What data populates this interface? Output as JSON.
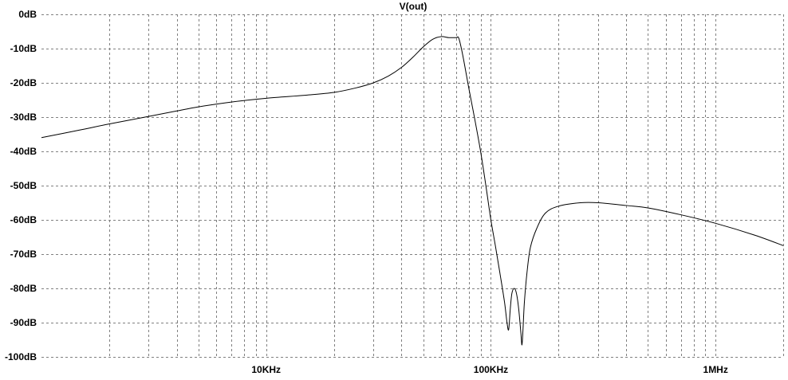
{
  "chart_data": {
    "type": "line",
    "title": "V(out)",
    "xlabel": "",
    "ylabel": "",
    "x_scale": "log",
    "xlim": [
      1000,
      2000000
    ],
    "ylim": [
      -100,
      0
    ],
    "grid": true,
    "y_ticks": [
      {
        "value": 0,
        "label": "0dB"
      },
      {
        "value": -10,
        "label": "-10dB"
      },
      {
        "value": -20,
        "label": "-20dB"
      },
      {
        "value": -30,
        "label": "-30dB"
      },
      {
        "value": -40,
        "label": "-40dB"
      },
      {
        "value": -50,
        "label": "-50dB"
      },
      {
        "value": -60,
        "label": "-60dB"
      },
      {
        "value": -70,
        "label": "-70dB"
      },
      {
        "value": -80,
        "label": "-80dB"
      },
      {
        "value": -90,
        "label": "-90dB"
      },
      {
        "value": -100,
        "label": "-100dB"
      }
    ],
    "x_ticks": [
      {
        "value": 10000,
        "label": "10KHz"
      },
      {
        "value": 100000,
        "label": "100KHz"
      },
      {
        "value": 1000000,
        "label": "1MHz"
      }
    ],
    "series": [
      {
        "x": [
          1000,
          1500,
          2000,
          3000,
          4000,
          5000,
          7000,
          10000,
          15000,
          20000,
          25000,
          30000,
          35000,
          40000,
          45000,
          50000,
          55000,
          60000,
          65000,
          70000,
          72000,
          75000,
          80000,
          85000,
          90000,
          95000,
          100000,
          105000,
          110000,
          115000,
          118000,
          120000,
          122000,
          124000,
          127000,
          130000,
          133000,
          136000,
          137500,
          139000,
          141000,
          145000,
          150000,
          160000,
          175000,
          200000,
          250000,
          300000,
          400000,
          500000,
          700000,
          1000000,
          1500000,
          2000000
        ],
        "y": [
          -36,
          -33.7,
          -32,
          -29.8,
          -28.2,
          -27,
          -25.6,
          -24.5,
          -23.6,
          -22.8,
          -21.5,
          -20,
          -18,
          -15.5,
          -12.5,
          -9.5,
          -7.3,
          -6.5,
          -6.8,
          -6.8,
          -7,
          -12,
          -22,
          -31,
          -40,
          -50,
          -60,
          -68,
          -76,
          -84,
          -90,
          -92,
          -86,
          -81.5,
          -80,
          -81.5,
          -86,
          -93,
          -96.5,
          -92,
          -84,
          -75,
          -68,
          -62.5,
          -58,
          -56,
          -55,
          -55,
          -55.8,
          -56.5,
          -58.5,
          -61,
          -64.5,
          -67.5
        ]
      }
    ]
  }
}
